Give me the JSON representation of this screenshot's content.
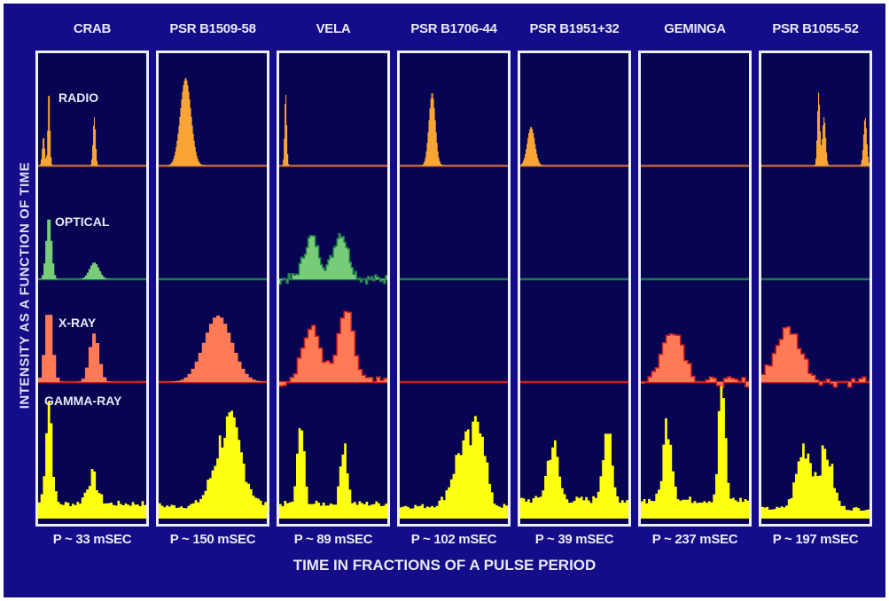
{
  "chart_data": {
    "type": "area",
    "ylabel": "INTENSITY AS A FUNCTION OF TIME",
    "xlabel": "TIME IN FRACTIONS OF A PULSE PERIOD",
    "bands": [
      "RADIO",
      "OPTICAL",
      "X-RAY",
      "GAMMA-RAY"
    ],
    "colors": {
      "background": "#140c88",
      "panel": "#070552",
      "radio_fill": "#f8a535",
      "radio_line": "#b8603a",
      "optical_fill": "#78cc78",
      "optical_line": "#1d7a4a",
      "xray_fill": "#ff7a55",
      "xray_line": "#c81e1e",
      "gamma_fill": "#ffff10"
    },
    "pulsars": [
      {
        "name": "CRAB",
        "period": "P ~ 33 mSEC",
        "radio": {
          "peaks": [
            [
              0.05,
              0.3,
              0.012
            ],
            [
              0.1,
              0.78,
              0.01
            ],
            [
              0.52,
              0.5,
              0.012
            ]
          ]
        },
        "optical": {
          "peaks": [
            [
              0.1,
              0.75,
              0.025
            ],
            [
              0.52,
              0.2,
              0.045
            ]
          ]
        },
        "xray": {
          "peaks": [
            [
              0.1,
              0.85,
              0.035
            ],
            [
              0.52,
              0.55,
              0.045
            ]
          ]
        },
        "gamma": {
          "base": 0.12,
          "peaks": [
            [
              0.1,
              0.85,
              0.03
            ],
            [
              0.5,
              0.22,
              0.05
            ]
          ]
        }
      },
      {
        "name": "PSR B1509-58",
        "period": "P ~ 150 mSEC",
        "radio": {
          "peaks": [
            [
              0.25,
              0.9,
              0.05
            ]
          ]
        },
        "optical": {
          "flat": true
        },
        "xray": {
          "peaks": [
            [
              0.55,
              0.75,
              0.13
            ]
          ]
        },
        "gamma": {
          "base": 0.1,
          "peaks": [
            [
              0.65,
              0.65,
              0.12
            ]
          ]
        }
      },
      {
        "name": "VELA",
        "period": "P ~ 89 mSEC",
        "radio": {
          "peaks": [
            [
              0.06,
              0.75,
              0.01
            ]
          ]
        },
        "optical": {
          "noisy": true,
          "peaks": [
            [
              0.3,
              0.5,
              0.07
            ],
            [
              0.57,
              0.55,
              0.07
            ]
          ]
        },
        "xray": {
          "noisy": true,
          "peaks": [
            [
              0.3,
              0.6,
              0.09
            ],
            [
              0.62,
              0.8,
              0.07
            ]
          ]
        },
        "gamma": {
          "base": 0.12,
          "peaks": [
            [
              0.2,
              0.65,
              0.03
            ],
            [
              0.6,
              0.55,
              0.03
            ]
          ]
        }
      },
      {
        "name": "PSR B1706-44",
        "period": "P ~ 102 mSEC",
        "radio": {
          "peaks": [
            [
              0.3,
              0.75,
              0.03
            ]
          ]
        },
        "optical": {
          "flat": true
        },
        "xray": {
          "flat": true
        },
        "gamma": {
          "base": 0.1,
          "peaks": [
            [
              0.6,
              0.5,
              0.1
            ],
            [
              0.75,
              0.55,
              0.05
            ]
          ]
        }
      },
      {
        "name": "PSR B1951+32",
        "period": "P ~ 39 mSEC",
        "radio": {
          "peaks": [
            [
              0.1,
              0.4,
              0.035
            ]
          ]
        },
        "optical": {
          "flat": true
        },
        "xray": {
          "flat": true
        },
        "gamma": {
          "base": 0.15,
          "peaks": [
            [
              0.3,
              0.45,
              0.05
            ],
            [
              0.8,
              0.6,
              0.04
            ]
          ]
        }
      },
      {
        "name": "GEMINGA",
        "period": "P ~  237 mSEC",
        "radio": {
          "flat": true
        },
        "optical": {
          "flat": true
        },
        "xray": {
          "noisy": true,
          "peaks": [
            [
              0.3,
              0.6,
              0.1
            ]
          ]
        },
        "gamma": {
          "base": 0.15,
          "peaks": [
            [
              0.25,
              0.65,
              0.04
            ],
            [
              0.75,
              0.95,
              0.03
            ]
          ]
        }
      },
      {
        "name": "PSR B1055-52",
        "period": "P ~ 197 mSEC",
        "radio": {
          "peaks": [
            [
              0.53,
              0.75,
              0.012
            ],
            [
              0.58,
              0.5,
              0.015
            ],
            [
              0.96,
              0.5,
              0.015
            ]
          ]
        },
        "optical": {
          "flat": true
        },
        "xray": {
          "noisy": true,
          "peaks": [
            [
              0.25,
              0.6,
              0.12
            ]
          ]
        },
        "gamma": {
          "base": 0.08,
          "peaks": [
            [
              0.4,
              0.5,
              0.07
            ],
            [
              0.6,
              0.45,
              0.06
            ]
          ]
        }
      }
    ]
  }
}
